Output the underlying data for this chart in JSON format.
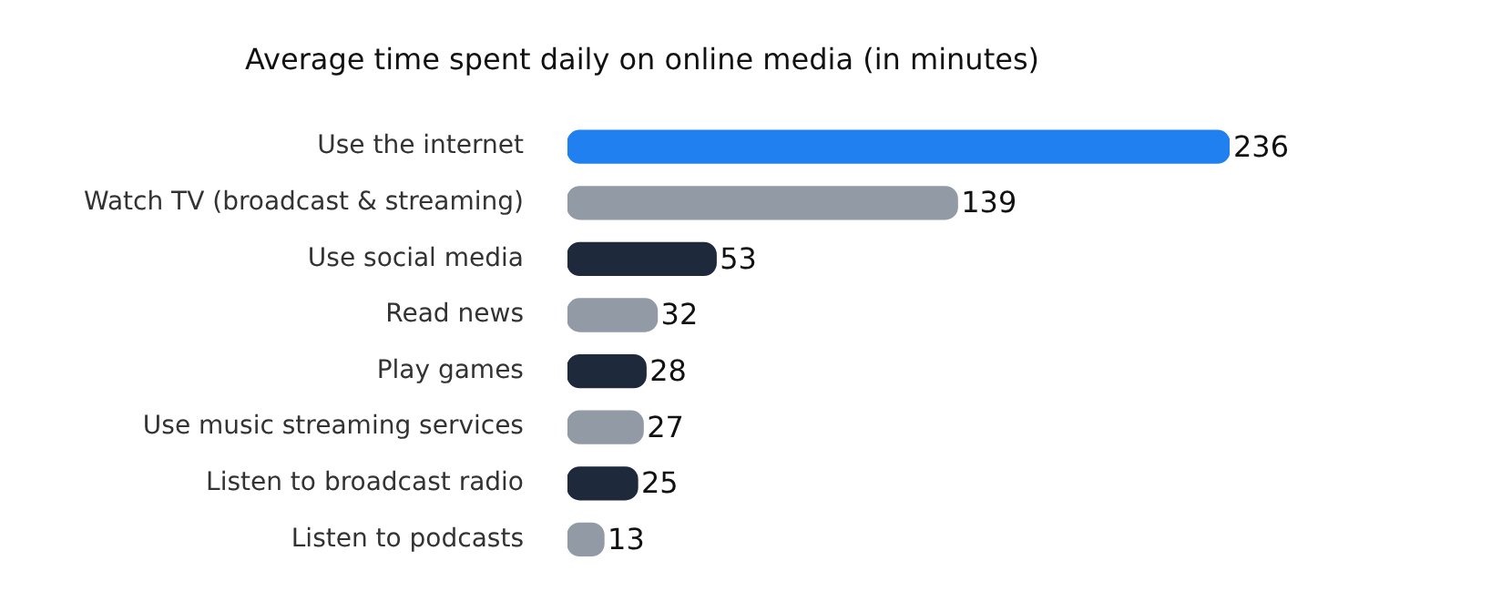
{
  "chart_data": {
    "type": "bar",
    "orientation": "horizontal",
    "title": "Average time spent daily on online media (in minutes)",
    "categories": [
      "Use the internet",
      "Watch TV (broadcast & streaming)",
      "Use social media",
      "Read news",
      "Play games",
      "Use music streaming services",
      "Listen to broadcast radio",
      "Listen to podcasts"
    ],
    "values": [
      236,
      139,
      53,
      32,
      28,
      27,
      25,
      13
    ],
    "colors": [
      "#2080f0",
      "#929ba5",
      "#1e2a3c",
      "#929ba5",
      "#1e2a3c",
      "#929ba5",
      "#1e2a3c",
      "#929ba5"
    ],
    "data_labels": true,
    "legend": false
  }
}
